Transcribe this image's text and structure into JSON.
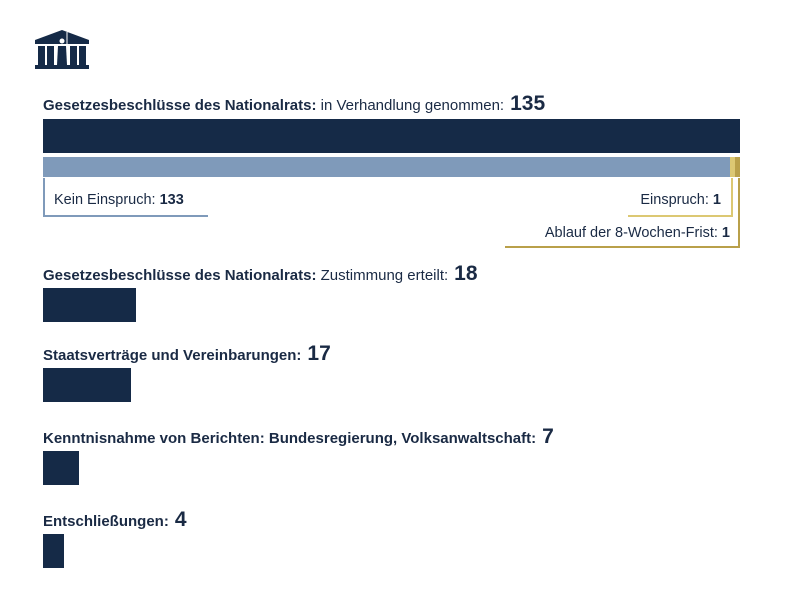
{
  "colors": {
    "dark": "#152a47",
    "light": "#7f9aba",
    "gold1": "#dcc873",
    "gold2": "#b9a04a"
  },
  "chart_data": {
    "type": "bar",
    "max": 135,
    "main": {
      "title_bold": "Gesetzesbeschlüsse des Nationalrats:",
      "title_rest": " in Verhandlung genommen:",
      "value": 135,
      "breakdown": [
        {
          "name": "Kein Einspruch:",
          "value": 133
        },
        {
          "name": "Einspruch:",
          "value": 1
        },
        {
          "name": "Ablauf der 8-Wochen-Frist:",
          "value": 1
        }
      ]
    },
    "items": [
      {
        "title_bold": "Gesetzesbeschlüsse des Nationalrats:",
        "title_rest": " Zustimmung erteilt:",
        "value": 18
      },
      {
        "title_bold": "Staatsverträge und Vereinbarungen:",
        "title_rest": "",
        "value": 17
      },
      {
        "title_bold": "Kenntnisnahme von Berichten: Bundesregierung, Volksanwaltschaft:",
        "title_rest": "",
        "value": 7
      },
      {
        "title_bold": "Entschließungen:",
        "title_rest": "",
        "value": 4
      }
    ]
  }
}
